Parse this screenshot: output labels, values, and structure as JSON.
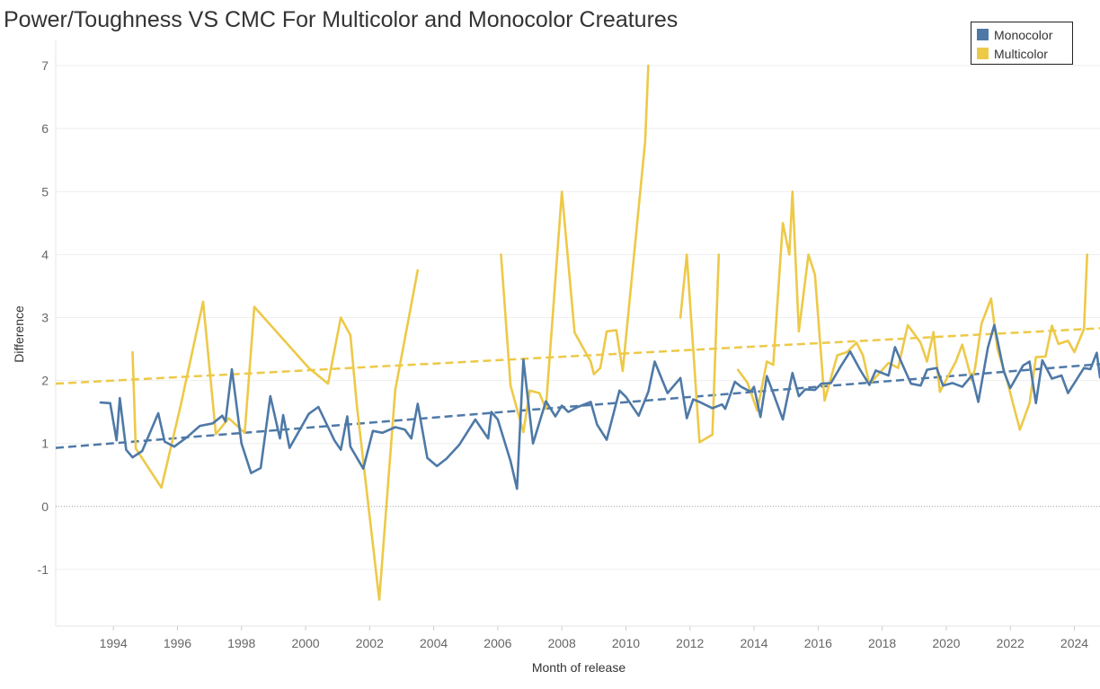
{
  "chart_data": {
    "type": "line",
    "title": "Power/Toughness VS CMC For Multicolor and Monocolor Creatures",
    "xlabel": "Month of release",
    "ylabel": "Difference",
    "xlim": [
      1992.2,
      2024.8
    ],
    "ylim": [
      -1.9,
      7.4
    ],
    "x_ticks": [
      "1994",
      "1996",
      "1998",
      "2000",
      "2002",
      "2004",
      "2006",
      "2008",
      "2010",
      "2012",
      "2014",
      "2016",
      "2018",
      "2020",
      "2022",
      "2024"
    ],
    "y_ticks": [
      "-1",
      "0",
      "1",
      "2",
      "3",
      "4",
      "5",
      "6",
      "7"
    ],
    "grid": true,
    "legend_position": "top-right",
    "series": [
      {
        "name": "Monocolor",
        "color": "#4e79a7",
        "trend": [
          [
            1992.2,
            0.93
          ],
          [
            2024.8,
            2.26
          ]
        ],
        "points": [
          [
            1993.6,
            1.65
          ],
          [
            1993.9,
            1.64
          ],
          [
            1994.1,
            1.05
          ],
          [
            1994.2,
            1.72
          ],
          [
            1994.4,
            0.9
          ],
          [
            1994.6,
            0.78
          ],
          [
            1994.9,
            0.88
          ],
          [
            1995.4,
            1.48
          ],
          [
            1995.6,
            1.03
          ],
          [
            1995.9,
            0.95
          ],
          [
            1996.3,
            1.1
          ],
          [
            1996.7,
            1.28
          ],
          [
            1997.1,
            1.32
          ],
          [
            1997.4,
            1.44
          ],
          [
            1997.5,
            1.35
          ],
          [
            1997.7,
            2.18
          ],
          [
            1998.0,
            1.0
          ],
          [
            1998.3,
            0.53
          ],
          [
            1998.6,
            0.61
          ],
          [
            1998.9,
            1.75
          ],
          [
            1999.2,
            1.08
          ],
          [
            1999.3,
            1.45
          ],
          [
            1999.5,
            0.93
          ],
          [
            2000.1,
            1.47
          ],
          [
            2000.4,
            1.58
          ],
          [
            2000.9,
            1.05
          ],
          [
            2001.1,
            0.9
          ],
          [
            2001.3,
            1.43
          ],
          [
            2001.4,
            0.95
          ],
          [
            2001.8,
            0.6
          ],
          [
            2002.1,
            1.2
          ],
          [
            2002.4,
            1.17
          ],
          [
            2002.8,
            1.26
          ],
          [
            2003.1,
            1.22
          ],
          [
            2003.3,
            1.08
          ],
          [
            2003.5,
            1.63
          ],
          [
            2003.8,
            0.77
          ],
          [
            2004.1,
            0.64
          ],
          [
            2004.4,
            0.76
          ],
          [
            2004.8,
            0.98
          ],
          [
            2005.3,
            1.38
          ],
          [
            2005.7,
            1.08
          ],
          [
            2005.8,
            1.5
          ],
          [
            2006.0,
            1.38
          ],
          [
            2006.4,
            0.72
          ],
          [
            2006.6,
            0.28
          ],
          [
            2006.8,
            2.33
          ],
          [
            2007.1,
            1.0
          ],
          [
            2007.5,
            1.67
          ],
          [
            2007.8,
            1.43
          ],
          [
            2008.0,
            1.6
          ],
          [
            2008.2,
            1.5
          ],
          [
            2008.5,
            1.58
          ],
          [
            2008.9,
            1.66
          ],
          [
            2009.1,
            1.3
          ],
          [
            2009.4,
            1.06
          ],
          [
            2009.8,
            1.84
          ],
          [
            2010.0,
            1.74
          ],
          [
            2010.4,
            1.44
          ],
          [
            2010.7,
            1.82
          ],
          [
            2010.9,
            2.3
          ],
          [
            2011.3,
            1.8
          ],
          [
            2011.7,
            2.04
          ],
          [
            2011.9,
            1.4
          ],
          [
            2012.1,
            1.7
          ],
          [
            2012.3,
            1.66
          ],
          [
            2012.7,
            1.56
          ],
          [
            2013.0,
            1.62
          ],
          [
            2013.1,
            1.55
          ],
          [
            2013.4,
            1.98
          ],
          [
            2013.6,
            1.9
          ],
          [
            2013.9,
            1.82
          ],
          [
            2014.0,
            1.9
          ],
          [
            2014.2,
            1.42
          ],
          [
            2014.4,
            2.07
          ],
          [
            2014.6,
            1.8
          ],
          [
            2014.9,
            1.38
          ],
          [
            2015.2,
            2.12
          ],
          [
            2015.4,
            1.75
          ],
          [
            2015.6,
            1.86
          ],
          [
            2015.9,
            1.85
          ],
          [
            2016.1,
            1.95
          ],
          [
            2016.4,
            1.96
          ],
          [
            2016.7,
            2.22
          ],
          [
            2017.0,
            2.46
          ],
          [
            2017.3,
            2.18
          ],
          [
            2017.6,
            1.93
          ],
          [
            2017.8,
            2.16
          ],
          [
            2018.2,
            2.08
          ],
          [
            2018.4,
            2.53
          ],
          [
            2018.6,
            2.29
          ],
          [
            2018.9,
            1.95
          ],
          [
            2019.2,
            1.92
          ],
          [
            2019.4,
            2.17
          ],
          [
            2019.7,
            2.2
          ],
          [
            2019.9,
            1.92
          ],
          [
            2020.2,
            1.96
          ],
          [
            2020.5,
            1.9
          ],
          [
            2020.8,
            2.08
          ],
          [
            2021.0,
            1.66
          ],
          [
            2021.3,
            2.52
          ],
          [
            2021.5,
            2.88
          ],
          [
            2021.8,
            2.14
          ],
          [
            2022.0,
            1.88
          ],
          [
            2022.4,
            2.24
          ],
          [
            2022.6,
            2.3
          ],
          [
            2022.8,
            1.64
          ],
          [
            2023.0,
            2.32
          ],
          [
            2023.3,
            2.03
          ],
          [
            2023.6,
            2.08
          ],
          [
            2023.8,
            1.8
          ],
          [
            2024.3,
            2.2
          ],
          [
            2024.5,
            2.18
          ],
          [
            2024.7,
            2.44
          ],
          [
            2024.8,
            2.05
          ]
        ]
      },
      {
        "name": "Multicolor",
        "color": "#edc948",
        "trend": [
          [
            1992.2,
            1.95
          ],
          [
            2024.8,
            2.83
          ]
        ],
        "segments": [
          [
            [
              1994.6,
              2.45
            ],
            [
              1994.7,
              0.92
            ],
            [
              1995.5,
              0.3
            ],
            [
              1996.1,
              1.6
            ],
            [
              1996.8,
              3.25
            ],
            [
              1997.2,
              1.15
            ],
            [
              1997.6,
              1.4
            ],
            [
              1998.1,
              1.17
            ],
            [
              1998.4,
              3.17
            ],
            [
              2000.1,
              2.2
            ],
            [
              2000.7,
              1.95
            ],
            [
              2001.1,
              3.0
            ],
            [
              2001.4,
              2.72
            ],
            [
              2001.6,
              1.6
            ],
            [
              2002.3,
              -1.48
            ],
            [
              2002.8,
              1.85
            ],
            [
              2003.5,
              3.75
            ]
          ],
          [
            [
              2006.1,
              4.0
            ],
            [
              2006.4,
              1.92
            ],
            [
              2006.8,
              1.18
            ],
            [
              2007.0,
              1.84
            ],
            [
              2007.3,
              1.8
            ],
            [
              2007.5,
              1.55
            ],
            [
              2008.0,
              5.0
            ],
            [
              2008.4,
              2.76
            ],
            [
              2008.9,
              2.3
            ],
            [
              2009.0,
              2.1
            ],
            [
              2009.2,
              2.2
            ],
            [
              2009.4,
              2.78
            ],
            [
              2009.7,
              2.8
            ],
            [
              2009.9,
              2.15
            ],
            [
              2010.6,
              5.8
            ],
            [
              2010.7,
              7.0
            ]
          ],
          [
            [
              2011.7,
              3.0
            ],
            [
              2011.9,
              4.0
            ],
            [
              2012.3,
              1.02
            ],
            [
              2012.7,
              1.14
            ],
            [
              2012.9,
              4.0
            ]
          ],
          [
            [
              2013.5,
              2.17
            ],
            [
              2013.8,
              1.96
            ],
            [
              2014.1,
              1.52
            ],
            [
              2014.4,
              2.3
            ],
            [
              2014.6,
              2.25
            ],
            [
              2014.9,
              4.5
            ],
            [
              2015.1,
              4.0
            ],
            [
              2015.2,
              5.0
            ],
            [
              2015.4,
              2.78
            ],
            [
              2015.7,
              4.0
            ],
            [
              2015.9,
              3.68
            ],
            [
              2016.2,
              1.68
            ],
            [
              2016.6,
              2.4
            ],
            [
              2016.9,
              2.45
            ],
            [
              2017.2,
              2.6
            ],
            [
              2017.4,
              2.4
            ],
            [
              2017.6,
              1.94
            ],
            [
              2018.2,
              2.28
            ],
            [
              2018.5,
              2.2
            ],
            [
              2018.8,
              2.88
            ],
            [
              2019.2,
              2.6
            ],
            [
              2019.4,
              2.3
            ],
            [
              2019.6,
              2.77
            ],
            [
              2019.8,
              1.82
            ],
            [
              2020.3,
              2.3
            ],
            [
              2020.5,
              2.57
            ],
            [
              2020.8,
              2.0
            ],
            [
              2020.9,
              2.2
            ],
            [
              2021.1,
              2.9
            ],
            [
              2021.4,
              3.3
            ],
            [
              2021.6,
              2.5
            ],
            [
              2021.9,
              2.0
            ],
            [
              2022.1,
              1.6
            ],
            [
              2022.3,
              1.22
            ],
            [
              2022.6,
              1.64
            ],
            [
              2022.8,
              2.37
            ],
            [
              2023.1,
              2.38
            ],
            [
              2023.3,
              2.87
            ],
            [
              2023.5,
              2.58
            ],
            [
              2023.8,
              2.63
            ],
            [
              2024.0,
              2.45
            ],
            [
              2024.3,
              2.82
            ],
            [
              2024.4,
              4.0
            ]
          ]
        ]
      }
    ]
  }
}
